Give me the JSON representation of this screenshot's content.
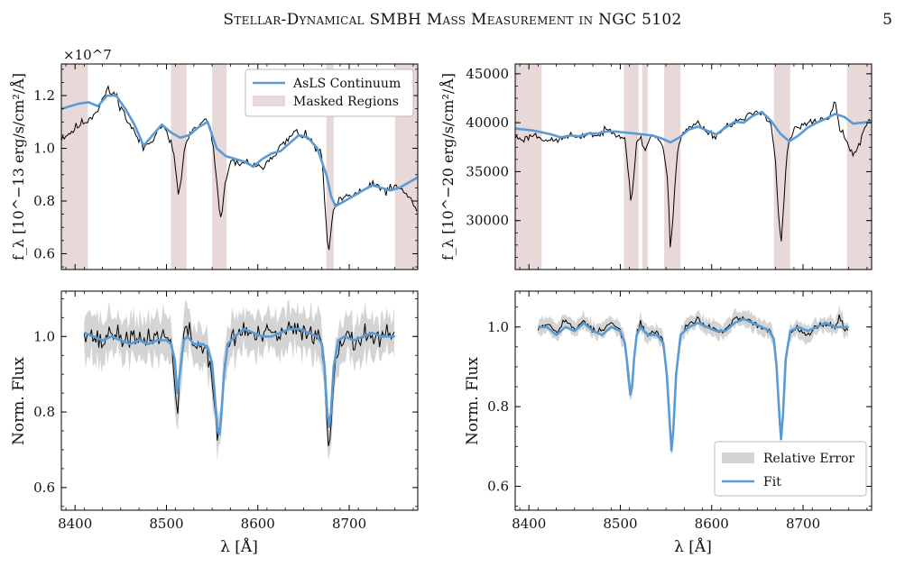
{
  "header": {
    "running_title": "Stellar-Dynamical SMBH Mass Measurement in NGC 5102",
    "page_number": "5"
  },
  "colors": {
    "fit": "#5b9bd5",
    "data": "#000000",
    "mask": "#e8d8d8",
    "error_band": "#d4d4d4"
  },
  "x_axis": {
    "xlim": [
      8385,
      8775
    ],
    "ticks": [
      8400,
      8500,
      8600,
      8700
    ],
    "tick_labels": [
      "8400",
      "8500",
      "8600",
      "8700"
    ],
    "label": "λ [Å]"
  },
  "chart_data": [
    {
      "id": "top-left",
      "type": "line",
      "ylabel": "f_λ [10^−13 erg/s/cm²/Å]",
      "scale_label": "×10^7",
      "ylim": [
        0.54,
        1.32
      ],
      "yticks": [
        0.6,
        0.8,
        1.0,
        1.2
      ],
      "ytick_labels": [
        "0.6",
        "0.8",
        "1.0",
        "1.2"
      ],
      "legend": {
        "placement": "top-right",
        "entries": [
          "AsLS Continuum",
          "Masked Regions"
        ]
      },
      "masked_regions": [
        [
          8385,
          8414
        ],
        [
          8505,
          8522
        ],
        [
          8550,
          8566
        ],
        [
          8675,
          8683
        ],
        [
          8750,
          8775
        ]
      ],
      "data_noise": 0.018,
      "series": [
        {
          "name": "AsLS Continuum",
          "role": "fit",
          "x": [
            8385,
            8395,
            8405,
            8415,
            8425,
            8435,
            8445,
            8455,
            8465,
            8475,
            8485,
            8495,
            8505,
            8515,
            8525,
            8535,
            8545,
            8555,
            8565,
            8575,
            8585,
            8595,
            8605,
            8615,
            8625,
            8635,
            8645,
            8655,
            8665,
            8675,
            8680,
            8685,
            8695,
            8705,
            8715,
            8725,
            8735,
            8745,
            8755,
            8765,
            8775
          ],
          "y": [
            1.15,
            1.16,
            1.17,
            1.175,
            1.16,
            1.2,
            1.2,
            1.15,
            1.09,
            1.01,
            1.05,
            1.09,
            1.06,
            1.04,
            1.05,
            1.08,
            1.1,
            1.0,
            0.97,
            0.96,
            0.95,
            0.93,
            0.96,
            0.98,
            0.99,
            1.02,
            1.05,
            1.04,
            1.0,
            0.9,
            0.82,
            0.78,
            0.8,
            0.82,
            0.84,
            0.86,
            0.85,
            0.84,
            0.85,
            0.87,
            0.89
          ]
        },
        {
          "name": "data",
          "role": "data",
          "x": [
            8385,
            8395,
            8405,
            8415,
            8425,
            8435,
            8445,
            8455,
            8465,
            8475,
            8485,
            8495,
            8505,
            8510,
            8513,
            8516,
            8520,
            8525,
            8535,
            8545,
            8552,
            8556,
            8560,
            8564,
            8570,
            8580,
            8590,
            8600,
            8610,
            8620,
            8630,
            8640,
            8650,
            8660,
            8670,
            8674,
            8677,
            8680,
            8684,
            8690,
            8700,
            8710,
            8720,
            8730,
            8740,
            8750,
            8760,
            8770,
            8775
          ],
          "y": [
            1.04,
            1.06,
            1.09,
            1.11,
            1.15,
            1.22,
            1.2,
            1.12,
            1.06,
            1.0,
            1.04,
            1.09,
            1.02,
            0.93,
            0.82,
            0.88,
            1.0,
            1.05,
            1.08,
            1.11,
            1.0,
            0.82,
            0.74,
            0.85,
            0.96,
            0.93,
            0.95,
            0.92,
            0.95,
            0.99,
            1.02,
            1.06,
            1.05,
            1.02,
            0.97,
            0.75,
            0.6,
            0.68,
            0.78,
            0.8,
            0.82,
            0.83,
            0.85,
            0.86,
            0.84,
            0.85,
            0.84,
            0.79,
            0.76
          ]
        }
      ]
    },
    {
      "id": "top-right",
      "type": "line",
      "ylabel": "f_λ [10^−20 erg/s/cm²/Å]",
      "scale_label": "",
      "ylim": [
        25000,
        46000
      ],
      "yticks": [
        30000,
        35000,
        40000,
        45000
      ],
      "ytick_labels": [
        "30000",
        "35000",
        "40000",
        "45000"
      ],
      "masked_regions": [
        [
          8385,
          8414
        ],
        [
          8504,
          8520
        ],
        [
          8524,
          8530
        ],
        [
          8548,
          8566
        ],
        [
          8668,
          8686
        ],
        [
          8748,
          8775
        ]
      ],
      "data_noise": 350,
      "series": [
        {
          "name": "AsLS Continuum",
          "role": "fit",
          "x": [
            8385,
            8395,
            8405,
            8415,
            8425,
            8435,
            8445,
            8455,
            8465,
            8475,
            8485,
            8495,
            8505,
            8515,
            8525,
            8535,
            8545,
            8555,
            8565,
            8575,
            8585,
            8595,
            8605,
            8615,
            8625,
            8635,
            8645,
            8655,
            8665,
            8675,
            8685,
            8695,
            8705,
            8715,
            8725,
            8735,
            8745,
            8755,
            8765,
            8775
          ],
          "y": [
            39400,
            39300,
            39200,
            39000,
            38800,
            38500,
            38700,
            38600,
            38900,
            38900,
            39100,
            39100,
            39000,
            38900,
            38800,
            38700,
            38400,
            38000,
            38500,
            39300,
            39600,
            39200,
            38800,
            39500,
            40100,
            40000,
            40700,
            41100,
            40200,
            38900,
            38100,
            38700,
            39500,
            40000,
            40400,
            40900,
            40600,
            39900,
            40000,
            40100
          ]
        },
        {
          "name": "data",
          "role": "data",
          "x": [
            8385,
            8395,
            8405,
            8415,
            8425,
            8435,
            8445,
            8455,
            8465,
            8475,
            8485,
            8495,
            8505,
            8509,
            8512,
            8515,
            8518,
            8522,
            8527,
            8532,
            8538,
            8546,
            8552,
            8555,
            8558,
            8562,
            8568,
            8575,
            8585,
            8595,
            8605,
            8615,
            8625,
            8635,
            8645,
            8655,
            8665,
            8670,
            8673,
            8676,
            8679,
            8683,
            8690,
            8700,
            8710,
            8720,
            8730,
            8735,
            8740,
            8745,
            8750,
            8755,
            8760,
            8765,
            8770,
            8775
          ],
          "y": [
            38500,
            38300,
            38800,
            38400,
            38100,
            38300,
            38800,
            38300,
            39000,
            38600,
            39300,
            39000,
            38400,
            35000,
            31500,
            34500,
            38200,
            38600,
            37000,
            38500,
            38700,
            37800,
            34000,
            26500,
            31000,
            37000,
            39000,
            39400,
            40000,
            39100,
            38600,
            39600,
            40100,
            40300,
            41000,
            41200,
            39800,
            36000,
            30500,
            27500,
            32000,
            37500,
            39300,
            39700,
            40100,
            40300,
            40600,
            42200,
            39500,
            38500,
            37600,
            36800,
            37200,
            38900,
            40100,
            40300
          ]
        }
      ]
    },
    {
      "id": "bottom-left",
      "type": "line",
      "ylabel": "Norm. Flux",
      "ylim": [
        0.54,
        1.12
      ],
      "yticks": [
        0.6,
        0.8,
        1.0
      ],
      "ytick_labels": [
        "0.6",
        "0.8",
        "1.0"
      ],
      "xrange_data": [
        8410,
        8750
      ],
      "error_band": 0.055,
      "data_noise": 0.028,
      "series": [
        {
          "name": "Fit",
          "role": "fit",
          "x": [
            8410,
            8420,
            8430,
            8440,
            8450,
            8460,
            8470,
            8480,
            8490,
            8500,
            8505,
            8509,
            8512,
            8515,
            8519,
            8523,
            8530,
            8540,
            8545,
            8550,
            8553,
            8556,
            8558,
            8560,
            8563,
            8567,
            8575,
            8585,
            8595,
            8605,
            8615,
            8625,
            8635,
            8645,
            8655,
            8665,
            8670,
            8673,
            8676,
            8678,
            8680,
            8683,
            8688,
            8695,
            8705,
            8715,
            8725,
            8735,
            8745,
            8750
          ],
          "y": [
            1.01,
            1.0,
            0.99,
            1.0,
            0.99,
            0.98,
            0.99,
            0.98,
            0.99,
            0.99,
            0.98,
            0.94,
            0.85,
            0.91,
            0.99,
            1.0,
            0.98,
            0.98,
            0.97,
            0.93,
            0.84,
            0.75,
            0.74,
            0.79,
            0.9,
            0.98,
            1.0,
            1.02,
            1.01,
            1.0,
            1.0,
            1.01,
            1.02,
            1.02,
            1.01,
            1.0,
            0.98,
            0.92,
            0.8,
            0.76,
            0.8,
            0.92,
            0.99,
            1.0,
            0.99,
            1.0,
            1.01,
            1.0,
            1.0,
            1.0
          ]
        },
        {
          "name": "data",
          "role": "data",
          "x": [
            8410,
            8420,
            8430,
            8440,
            8450,
            8460,
            8470,
            8480,
            8490,
            8500,
            8505,
            8509,
            8512,
            8515,
            8519,
            8523,
            8530,
            8540,
            8545,
            8550,
            8553,
            8556,
            8558,
            8560,
            8563,
            8567,
            8575,
            8585,
            8595,
            8605,
            8615,
            8625,
            8635,
            8645,
            8655,
            8665,
            8670,
            8673,
            8676,
            8678,
            8680,
            8683,
            8688,
            8695,
            8705,
            8715,
            8725,
            8735,
            8745,
            8750
          ],
          "y": [
            1.02,
            1.0,
            0.98,
            1.02,
            0.99,
            1.0,
            0.98,
            1.0,
            1.0,
            1.0,
            0.98,
            0.9,
            0.78,
            0.9,
            1.0,
            1.02,
            0.98,
            0.97,
            0.96,
            0.9,
            0.8,
            0.72,
            0.73,
            0.8,
            0.9,
            0.98,
            1.0,
            1.02,
            1.0,
            1.0,
            1.01,
            1.0,
            1.02,
            1.01,
            1.02,
            1.0,
            0.98,
            0.9,
            0.76,
            0.69,
            0.78,
            0.9,
            0.98,
            1.0,
            0.98,
            1.01,
            1.0,
            0.99,
            1.0,
            1.01
          ]
        }
      ]
    },
    {
      "id": "bottom-right",
      "type": "line",
      "ylabel": "Norm. Flux",
      "ylim": [
        0.54,
        1.09
      ],
      "yticks": [
        0.6,
        0.8,
        1.0
      ],
      "ytick_labels": [
        "0.6",
        "0.8",
        "1.0"
      ],
      "xrange_data": [
        8410,
        8750
      ],
      "legend": {
        "placement": "bottom-right",
        "entries": [
          "Relative Error",
          "Fit"
        ]
      },
      "error_band": 0.02,
      "data_noise": 0.008,
      "series": [
        {
          "name": "Fit",
          "role": "fit",
          "x": [
            8410,
            8420,
            8430,
            8440,
            8450,
            8460,
            8470,
            8480,
            8490,
            8500,
            8505,
            8508,
            8511,
            8513,
            8515,
            8518,
            8522,
            8530,
            8540,
            8547,
            8551,
            8554,
            8556,
            8558,
            8561,
            8566,
            8575,
            8585,
            8595,
            8605,
            8615,
            8625,
            8635,
            8645,
            8655,
            8663,
            8668,
            8671,
            8674,
            8676,
            8678,
            8681,
            8686,
            8695,
            8705,
            8715,
            8725,
            8735,
            8745,
            8750
          ],
          "y": [
            1.0,
            1.0,
            0.98,
            1.0,
            0.99,
            1.01,
            0.99,
            0.98,
            1.0,
            0.99,
            0.96,
            0.9,
            0.83,
            0.85,
            0.92,
            0.98,
            1.0,
            0.98,
            0.98,
            0.96,
            0.88,
            0.76,
            0.69,
            0.74,
            0.88,
            0.98,
            1.0,
            1.01,
            1.0,
            0.99,
            0.99,
            1.01,
            1.02,
            1.01,
            1.0,
            0.99,
            0.97,
            0.9,
            0.78,
            0.72,
            0.78,
            0.92,
            0.99,
            1.0,
            0.99,
            1.0,
            1.01,
            1.0,
            1.0,
            1.0
          ]
        },
        {
          "name": "data",
          "role": "data",
          "x": [
            8410,
            8420,
            8430,
            8440,
            8450,
            8460,
            8470,
            8480,
            8490,
            8500,
            8505,
            8508,
            8511,
            8513,
            8515,
            8518,
            8522,
            8530,
            8540,
            8547,
            8551,
            8554,
            8556,
            8558,
            8561,
            8566,
            8575,
            8585,
            8595,
            8605,
            8615,
            8625,
            8635,
            8645,
            8655,
            8663,
            8668,
            8671,
            8674,
            8676,
            8678,
            8681,
            8686,
            8695,
            8705,
            8715,
            8725,
            8735,
            8740,
            8745,
            8750
          ],
          "y": [
            1.0,
            1.01,
            0.99,
            1.02,
            0.99,
            1.02,
            0.99,
            0.99,
            1.01,
            0.99,
            0.96,
            0.89,
            0.82,
            0.84,
            0.92,
            0.98,
            1.01,
            0.98,
            0.99,
            0.96,
            0.87,
            0.75,
            0.68,
            0.73,
            0.87,
            0.98,
            1.01,
            1.02,
            1.0,
            0.99,
            0.99,
            1.02,
            1.02,
            1.01,
            1.0,
            0.99,
            0.97,
            0.89,
            0.76,
            0.71,
            0.77,
            0.92,
            0.99,
            1.0,
            0.98,
            1.0,
            1.01,
            1.0,
            1.03,
            0.99,
            1.0
          ]
        }
      ]
    }
  ]
}
